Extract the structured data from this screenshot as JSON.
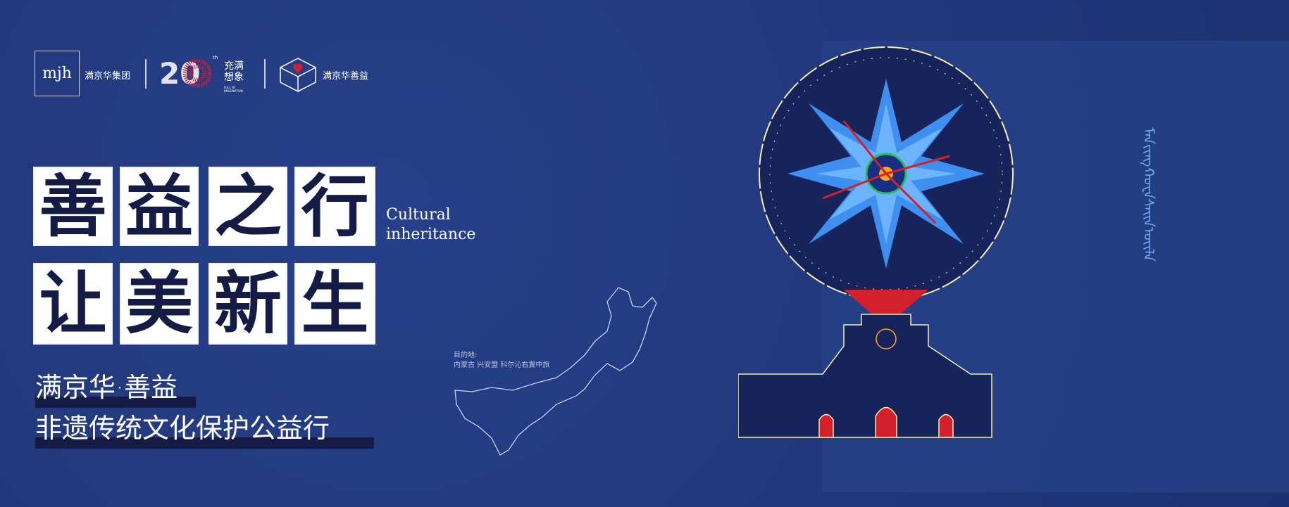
{
  "logos": {
    "mjh_mark": "mjh",
    "group_name": "满京华集团",
    "anniversary_mark": "20",
    "anniversary_sup": "th",
    "anniversary_slogan": "充满想象",
    "anniversary_en": "FULL OF IMAGINATION",
    "charity_name": "满京华善益"
  },
  "title": {
    "line1": [
      "善",
      "益",
      "之",
      "行"
    ],
    "line2": [
      "让",
      "美",
      "新",
      "生"
    ],
    "english_line1": "Cultural",
    "english_line2": "inheritance"
  },
  "subtitle": {
    "line1": "满京华·善益",
    "line2": "非遗传统文化保护公益行"
  },
  "destination": {
    "label": "目的地:",
    "value": "内蒙古 兴安盟 科尔沁右翼中旗"
  },
  "colors": {
    "background": "#22387a",
    "tile": "#ffffff",
    "tile_text": "#141c45",
    "accent_red": "#d4202c",
    "accent_blue": "#3f8ff0"
  }
}
